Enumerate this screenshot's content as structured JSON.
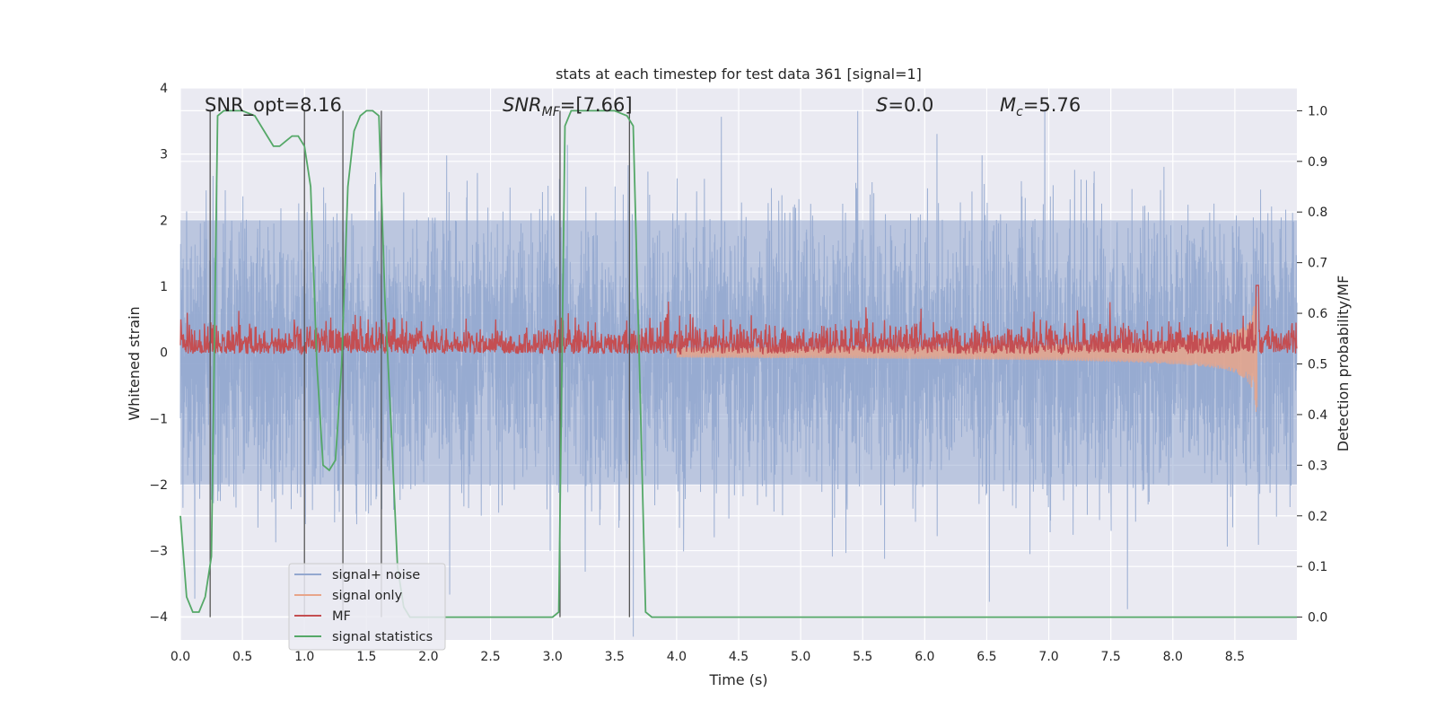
{
  "chart_data": {
    "type": "line",
    "title": "stats at each timestep for test data 361 [signal=1]",
    "xlabel": "Time (s)",
    "ylabel": "Whitened strain",
    "y2label": "Detection probability/MF",
    "xlim": [
      0,
      9.0
    ],
    "ylim": [
      -4.35,
      4.0
    ],
    "y2lim": [
      -0.045,
      1.045
    ],
    "x_ticks": [
      0.0,
      0.5,
      1.0,
      1.5,
      2.0,
      2.5,
      3.0,
      3.5,
      4.0,
      4.5,
      5.0,
      5.5,
      6.0,
      6.5,
      7.0,
      7.5,
      8.0,
      8.5
    ],
    "x_tick_labels": [
      "0.0",
      "0.5",
      "1.0",
      "1.5",
      "2.0",
      "2.5",
      "3.0",
      "3.5",
      "4.0",
      "4.5",
      "5.0",
      "5.5",
      "6.0",
      "6.5",
      "7.0",
      "7.5",
      "8.0",
      "8.5"
    ],
    "y_ticks": [
      -4,
      -3,
      -2,
      -1,
      0,
      1,
      2,
      3,
      4
    ],
    "y_tick_labels": [
      "−4",
      "−3",
      "−2",
      "−1",
      "0",
      "1",
      "2",
      "3",
      "4"
    ],
    "y2_ticks": [
      0.0,
      0.1,
      0.2,
      0.3,
      0.4,
      0.5,
      0.6,
      0.7,
      0.8,
      0.9,
      1.0
    ],
    "y2_tick_labels": [
      "0.0",
      "0.1",
      "0.2",
      "0.3",
      "0.4",
      "0.5",
      "0.6",
      "0.7",
      "0.8",
      "0.9",
      "1.0"
    ],
    "grid": true,
    "legend_position": "lower-left",
    "annotations": {
      "snr_opt": "SNR_opt=8.16",
      "snr_mf_main": "SNR",
      "snr_mf_sub": "MF",
      "snr_mf_rest": "=[7.66]",
      "s_main": "S",
      "s_rest": "=0.0",
      "mc_main": "M",
      "mc_sub": "c",
      "mc_rest": "=5.76"
    },
    "vertical_lines_x": [
      0.24,
      1.0,
      1.31,
      1.62,
      3.06,
      3.62
    ],
    "series": [
      {
        "name": "signal+ noise",
        "color": "#94a8cf",
        "axis": "left",
        "style": "noise",
        "duration": 9.0,
        "noise_std": 1.0,
        "envelope_max": 2.0
      },
      {
        "name": "signal only",
        "color": "#e8a58a",
        "axis": "left",
        "style": "chirp",
        "start": 4.0,
        "merger": 8.68,
        "peak_amplitude": 1.0
      },
      {
        "name": "MF",
        "color": "#c44e52",
        "axis": "right",
        "style": "mf",
        "base": 0.53,
        "jitter": 0.03,
        "peak_x": 8.68,
        "peak": 0.655
      },
      {
        "name": "signal statistics",
        "color": "#55a868",
        "axis": "right",
        "x": [
          0.0,
          0.05,
          0.1,
          0.15,
          0.2,
          0.25,
          0.3,
          0.35,
          0.4,
          0.5,
          0.6,
          0.7,
          0.75,
          0.8,
          0.85,
          0.9,
          0.95,
          1.0,
          1.05,
          1.1,
          1.15,
          1.2,
          1.25,
          1.3,
          1.35,
          1.4,
          1.45,
          1.5,
          1.55,
          1.6,
          1.65,
          1.7,
          1.75,
          1.8,
          1.85,
          1.9,
          2.0,
          2.5,
          3.0,
          3.05,
          3.1,
          3.15,
          3.2,
          3.3,
          3.5,
          3.6,
          3.65,
          3.7,
          3.75,
          3.8,
          4.0,
          9.0
        ],
        "values": [
          0.2,
          0.04,
          0.01,
          0.01,
          0.04,
          0.12,
          0.99,
          1.0,
          1.0,
          1.0,
          0.99,
          0.95,
          0.93,
          0.93,
          0.94,
          0.95,
          0.95,
          0.93,
          0.85,
          0.5,
          0.3,
          0.29,
          0.31,
          0.5,
          0.85,
          0.96,
          0.99,
          1.0,
          1.0,
          0.99,
          0.62,
          0.37,
          0.1,
          0.02,
          0.0,
          0.0,
          0.0,
          0.0,
          0.0,
          0.01,
          0.97,
          1.0,
          1.0,
          1.0,
          1.0,
          0.99,
          0.97,
          0.5,
          0.01,
          0.0,
          0.0,
          0.0
        ]
      }
    ]
  }
}
